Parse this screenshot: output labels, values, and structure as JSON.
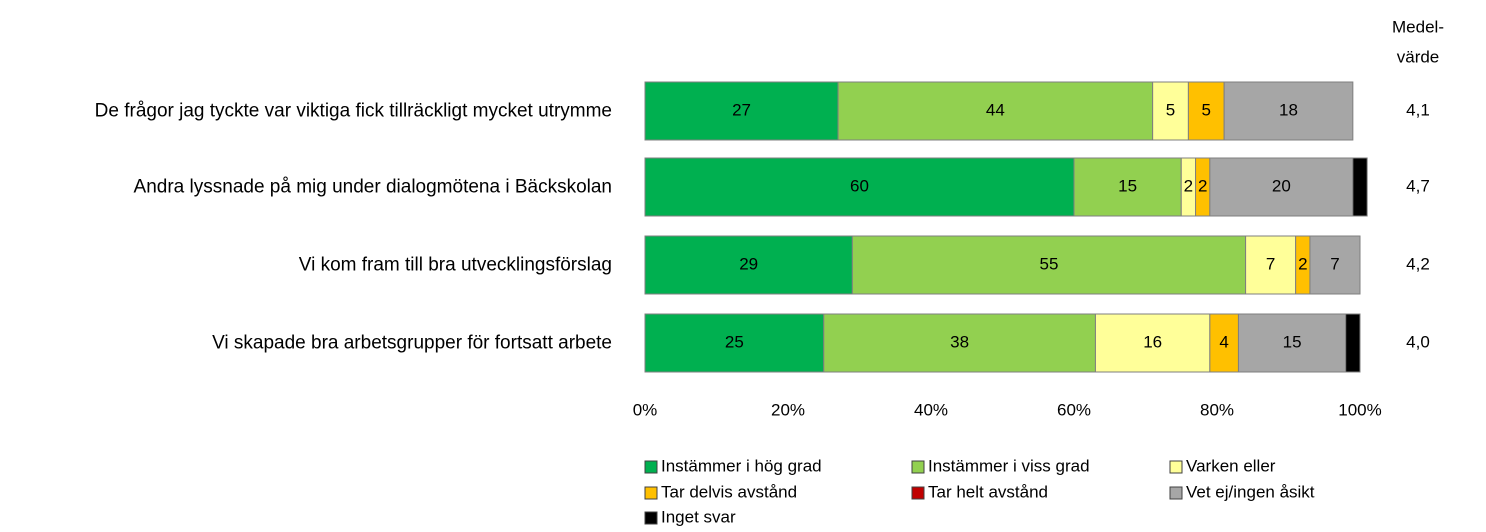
{
  "chart_data": {
    "type": "stacked_barh",
    "categories": [
      "De frågor jag tyckte var viktiga fick tillräckligt mycket utrymme",
      "Andra lyssnade på mig under dialogmötena i Bäckskolan",
      "Vi kom fram till bra utvecklingsförslag",
      "Vi skapade bra arbetsgrupper för fortsatt arbete"
    ],
    "series": [
      {
        "name": "Instämmer i hög grad",
        "color": "#00b050",
        "values": [
          27,
          60,
          29,
          25
        ]
      },
      {
        "name": "Instämmer i viss grad",
        "color": "#92d050",
        "values": [
          44,
          15,
          55,
          38
        ]
      },
      {
        "name": "Varken eller",
        "color": "#ffff99",
        "values": [
          5,
          2,
          7,
          16
        ]
      },
      {
        "name": "Tar delvis avstånd",
        "color": "#ffc000",
        "values": [
          5,
          2,
          2,
          4
        ]
      },
      {
        "name": "Tar helt avstånd",
        "color": "#c00000",
        "values": [
          0,
          0,
          0,
          0
        ]
      },
      {
        "name": "Vet ej/ingen åsikt",
        "color": "#a6a6a6",
        "values": [
          18,
          20,
          7,
          15
        ]
      },
      {
        "name": "Inget svar",
        "color": "#000000",
        "values": [
          0,
          2,
          0,
          2
        ]
      }
    ],
    "xlim": [
      0,
      100
    ],
    "xticks": [
      {
        "value": 0,
        "label": "0%"
      },
      {
        "value": 20,
        "label": "20%"
      },
      {
        "value": 40,
        "label": "40%"
      },
      {
        "value": 60,
        "label": "60%"
      },
      {
        "value": 80,
        "label": "80%"
      },
      {
        "value": 100,
        "label": "100%"
      }
    ],
    "mean_title": [
      "Medel-",
      "värde"
    ],
    "mean_values": [
      4.1,
      4.7,
      4.2,
      4.0
    ],
    "mean_labels": [
      "4,1",
      "4,7",
      "4,2",
      "4,0"
    ],
    "legend": "bottom"
  }
}
